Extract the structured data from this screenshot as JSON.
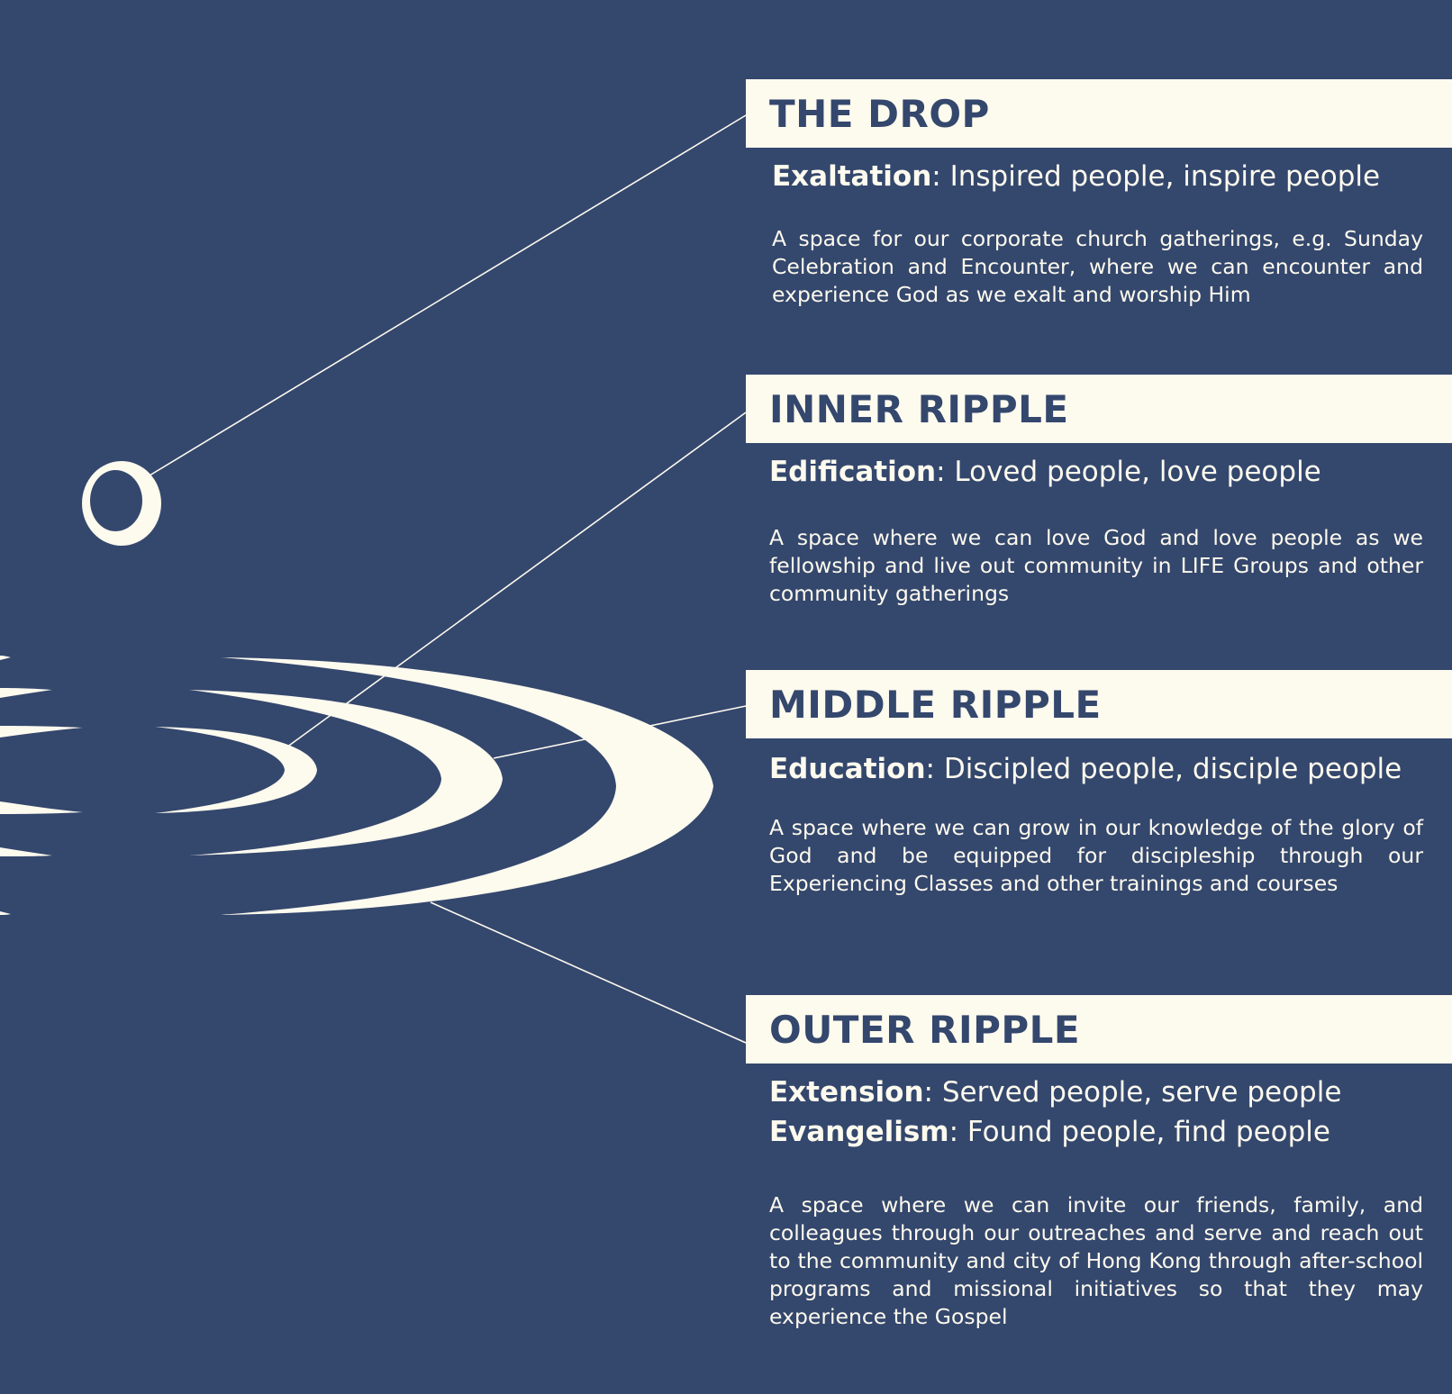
{
  "colors": {
    "background": "#34476d",
    "cream": "#fdfaee"
  },
  "sections": [
    {
      "title": "THE DROP",
      "taglines": [
        {
          "key": "Exaltation",
          "sep": ": ",
          "text": "Inspired people, inspire people"
        }
      ],
      "description": "A space for our corporate church gatherings, e.g. Sunday Celebration and Encounter, where we can encounter and experience God as we exalt and worship Him"
    },
    {
      "title": "INNER RIPPLE",
      "taglines": [
        {
          "key": "Edification",
          "sep": ": ",
          "text": "Loved people, love people"
        }
      ],
      "description": "A space where we can love God and love people as we fellowship and live out community in LIFE Groups and other community gatherings"
    },
    {
      "title": "MIDDLE RIPPLE",
      "taglines": [
        {
          "key": "Education",
          "sep": ": ",
          "text": "Discipled people, disciple people"
        }
      ],
      "description": "A space where we can grow in our knowledge of the glory of God and be equipped for discipleship through our Experiencing Classes and other trainings and courses"
    },
    {
      "title": "OUTER RIPPLE",
      "taglines": [
        {
          "key": "Extension",
          "sep": ": ",
          "text": "Served people, serve people"
        },
        {
          "key": "Evangelism",
          "sep": ": ",
          "text": "Found people, find people"
        }
      ],
      "description": "A space where we can invite our friends, family, and colleagues through our outreaches and serve and reach out to the community and city of Hong Kong through after-school programs and missional initiatives so that they may experience the Gospel"
    }
  ]
}
